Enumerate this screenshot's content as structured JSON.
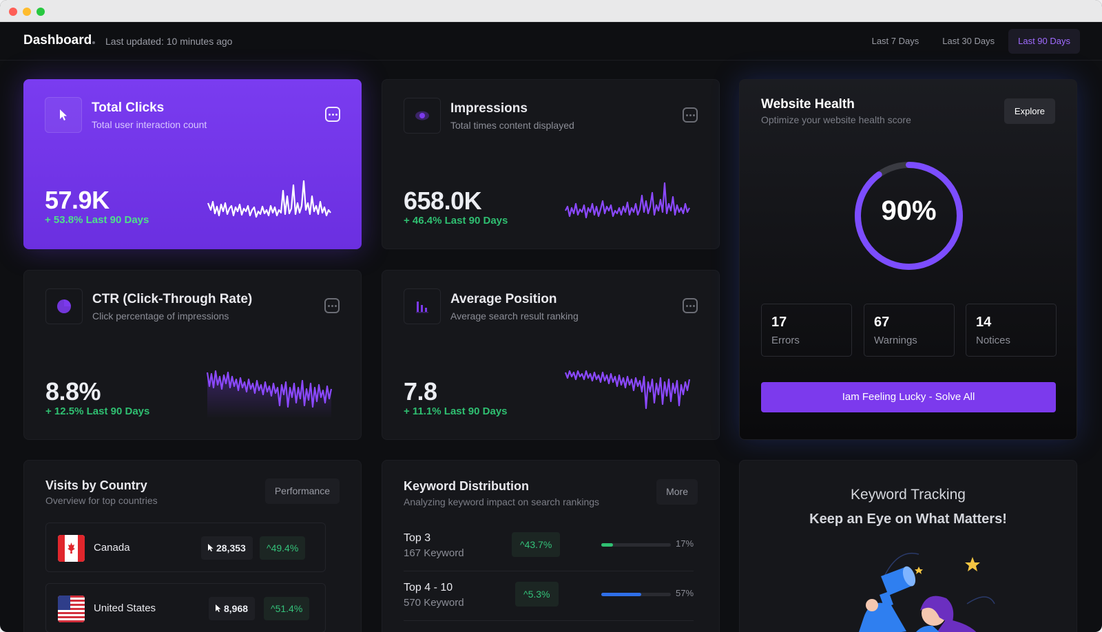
{
  "header": {
    "title": "Dashboard",
    "updated": "Last updated: 10 minutes ago",
    "ranges": [
      "Last 7 Days",
      "Last 30 Days",
      "Last 90 Days"
    ],
    "active_range": "Last 90 Days"
  },
  "cards": [
    {
      "title": "Total Clicks",
      "subtitle": "Total user interaction count",
      "value": "57.9K",
      "delta": "+ 53.8% Last 90 Days",
      "icon": "cursor-icon"
    },
    {
      "title": "Impressions",
      "subtitle": "Total times content displayed",
      "value": "658.0K",
      "delta": "+ 46.4% Last 90 Days",
      "icon": "eye-icon"
    },
    {
      "title": "CTR (Click-Through Rate)",
      "subtitle": "Click percentage of impressions",
      "value": "8.8%",
      "delta": "+ 12.5% Last 90 Days",
      "icon": "pie-icon"
    },
    {
      "title": "Average Position",
      "subtitle": "Average search result ranking",
      "value": "7.8",
      "delta": "+ 11.1% Last 90 Days",
      "icon": "bar-chart-icon"
    }
  ],
  "health": {
    "title": "Website Health",
    "subtitle": "Optimize your website health score",
    "explore": "Explore",
    "score": "90%",
    "score_value": 90,
    "stats": [
      {
        "num": "17",
        "label": "Errors"
      },
      {
        "num": "67",
        "label": "Warnings"
      },
      {
        "num": "14",
        "label": "Notices"
      }
    ],
    "action": "Iam Feeling Lucky - Solve All",
    "accent": "#7c3aed"
  },
  "countries": {
    "title": "Visits by Country",
    "subtitle": "Overview for top countries",
    "button": "Performance",
    "rows": [
      {
        "name": "Canada",
        "clicks": "28,353",
        "pct": "49.4%",
        "flag": "canada-flag-icon"
      },
      {
        "name": "United States",
        "clicks": "8,968",
        "pct": "51.4%",
        "flag": "usa-flag-icon"
      }
    ]
  },
  "keywords": {
    "title": "Keyword Distribution",
    "subtitle": "Analyzing keyword impact on search rankings",
    "button": "More",
    "rows": [
      {
        "name": "Top 3",
        "count": "167 Keyword",
        "pct": "43.7%",
        "share": "17%",
        "share_value": 17,
        "color": "#2fbf71"
      },
      {
        "name": "Top 4 - 10",
        "count": "570 Keyword",
        "pct": "5.3%",
        "share": "57%",
        "share_value": 57,
        "color": "#2f6fe8"
      }
    ]
  },
  "tracking": {
    "title": "Keyword Tracking",
    "headline": "Keep an Eye on What Matters!"
  }
}
